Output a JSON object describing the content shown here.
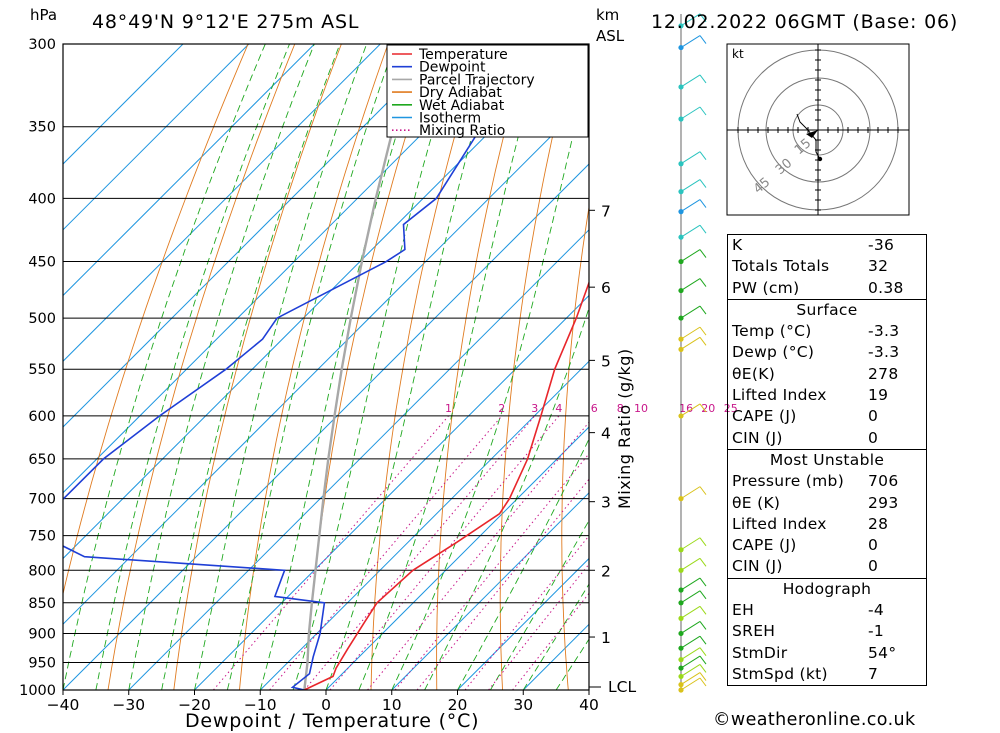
{
  "header": {
    "hpa_label": "hPa",
    "location": "48°49'N  9°12'E  275m  ASL",
    "km_label": "km",
    "asl_label": "ASL",
    "datetime": "12.02.2022  06GMT  (Base: 06)"
  },
  "legend": [
    {
      "label": "Temperature",
      "color": "#e8262b",
      "style": "solid"
    },
    {
      "label": "Dewpoint",
      "color": "#1f3fd6",
      "style": "solid"
    },
    {
      "label": "Parcel Trajectory",
      "color": "#a8a8a8",
      "style": "solid"
    },
    {
      "label": "Dry Adiabat",
      "color": "#e07b20",
      "style": "solid"
    },
    {
      "label": "Wet Adiabat",
      "color": "#1fa81f",
      "style": "solid"
    },
    {
      "label": "Isotherm",
      "color": "#1f96e0",
      "style": "solid"
    },
    {
      "label": "Mixing Ratio",
      "color": "#c8178a",
      "style": "dotted"
    }
  ],
  "chart_data": {
    "type": "line",
    "title": "48°49'N  9°12'E  275m  ASL",
    "xlabel": "Dewpoint / Temperature (°C)",
    "ylabel": "hPa",
    "y2label": "Mixing Ratio (g/kg)",
    "xlim": [
      -40,
      40
    ],
    "ylim": [
      1000,
      300
    ],
    "x_ticks": [
      -40,
      -30,
      -20,
      -10,
      0,
      10,
      20,
      30,
      40
    ],
    "pressure_levels": [
      300,
      350,
      400,
      450,
      500,
      550,
      600,
      650,
      700,
      750,
      800,
      850,
      900,
      950,
      1000
    ],
    "mixing_ratio_labels": [
      1,
      2,
      3,
      4,
      6,
      8,
      10,
      16,
      20,
      25
    ],
    "km_ticks": [
      {
        "km": "1",
        "p": 906
      },
      {
        "km": "2",
        "p": 800
      },
      {
        "km": "3",
        "p": 704
      },
      {
        "km": "4",
        "p": 619
      },
      {
        "km": "5",
        "p": 541
      },
      {
        "km": "6",
        "p": 472
      },
      {
        "km": "7",
        "p": 409
      }
    ],
    "lcl_label": "LCL",
    "series": [
      {
        "name": "Temperature",
        "color": "#e8262b",
        "points": [
          [
            1000,
            -3.3
          ],
          [
            975,
            -1.0
          ],
          [
            960,
            -1.8
          ],
          [
            925,
            -3.0
          ],
          [
            880,
            -4.5
          ],
          [
            850,
            -5.5
          ],
          [
            800,
            -5.0
          ],
          [
            760,
            -2.6
          ],
          [
            720,
            -0.4
          ],
          [
            700,
            -1.2
          ],
          [
            650,
            -4.5
          ],
          [
            600,
            -9.0
          ],
          [
            550,
            -14.0
          ],
          [
            500,
            -18.5
          ],
          [
            450,
            -24.0
          ],
          [
            410,
            -28.0
          ],
          [
            400,
            -29.0
          ],
          [
            350,
            -36.5
          ],
          [
            300,
            -46.0
          ]
        ]
      },
      {
        "name": "Dewpoint",
        "color": "#1f3fd6",
        "points": [
          [
            1000,
            -3.3
          ],
          [
            995,
            -5.5
          ],
          [
            970,
            -5.0
          ],
          [
            940,
            -7.0
          ],
          [
            900,
            -9.5
          ],
          [
            850,
            -13.5
          ],
          [
            840,
            -22.0
          ],
          [
            800,
            -24.5
          ],
          [
            780,
            -57
          ],
          [
            740,
            -70
          ],
          [
            720,
            -72
          ],
          [
            705,
            -70
          ],
          [
            700,
            -69
          ],
          [
            650,
            -69
          ],
          [
            600,
            -67
          ],
          [
            550,
            -64
          ],
          [
            520,
            -63
          ],
          [
            500,
            -64
          ],
          [
            450,
            -56
          ],
          [
            440,
            -55
          ],
          [
            420,
            -59
          ],
          [
            400,
            -58
          ],
          [
            350,
            -62
          ],
          [
            300,
            -67
          ]
        ]
      },
      {
        "name": "Parcel Trajectory",
        "color": "#a8a8a8",
        "points": [
          [
            1000,
            -3.3
          ],
          [
            950,
            -7.0
          ],
          [
            900,
            -11.2
          ],
          [
            850,
            -15.4
          ],
          [
            800,
            -19.8
          ],
          [
            750,
            -24.5
          ],
          [
            700,
            -29.5
          ],
          [
            650,
            -34.8
          ],
          [
            600,
            -40.4
          ],
          [
            550,
            -46.4
          ],
          [
            500,
            -52.8
          ],
          [
            450,
            -59.7
          ],
          [
            400,
            -67.2
          ],
          [
            350,
            -75.4
          ],
          [
            300,
            -84.5
          ]
        ]
      }
    ]
  },
  "hodograph": {
    "unit": "kt",
    "ring_labels": [
      "15",
      "30",
      "45"
    ]
  },
  "stats": {
    "indices": [
      {
        "label": "K",
        "value": "-36"
      },
      {
        "label": "Totals Totals",
        "value": "32"
      },
      {
        "label": "PW (cm)",
        "value": "0.38"
      }
    ],
    "surface": {
      "title": "Surface",
      "rows": [
        {
          "label": "Temp (°C)",
          "value": "-3.3"
        },
        {
          "label": "Dewp (°C)",
          "value": "-3.3"
        },
        {
          "label": "θE(K)",
          "value": "278"
        },
        {
          "label": "Lifted Index",
          "value": "19"
        },
        {
          "label": "CAPE (J)",
          "value": "0"
        },
        {
          "label": "CIN (J)",
          "value": "0"
        }
      ]
    },
    "most_unstable": {
      "title": "Most Unstable",
      "rows": [
        {
          "label": "Pressure (mb)",
          "value": "706"
        },
        {
          "label": "θE (K)",
          "value": "293"
        },
        {
          "label": "Lifted Index",
          "value": "28"
        },
        {
          "label": "CAPE (J)",
          "value": "0"
        },
        {
          "label": "CIN (J)",
          "value": "0"
        }
      ]
    },
    "hodograph": {
      "title": "Hodograph",
      "rows": [
        {
          "label": "EH",
          "value": "-4"
        },
        {
          "label": "SREH",
          "value": "-1"
        },
        {
          "label": "StmDir",
          "value": "54°"
        },
        {
          "label": "StmSpd (kt)",
          "value": "7"
        }
      ]
    }
  },
  "footer": {
    "copyright": "©weatheronline.co.uk"
  }
}
